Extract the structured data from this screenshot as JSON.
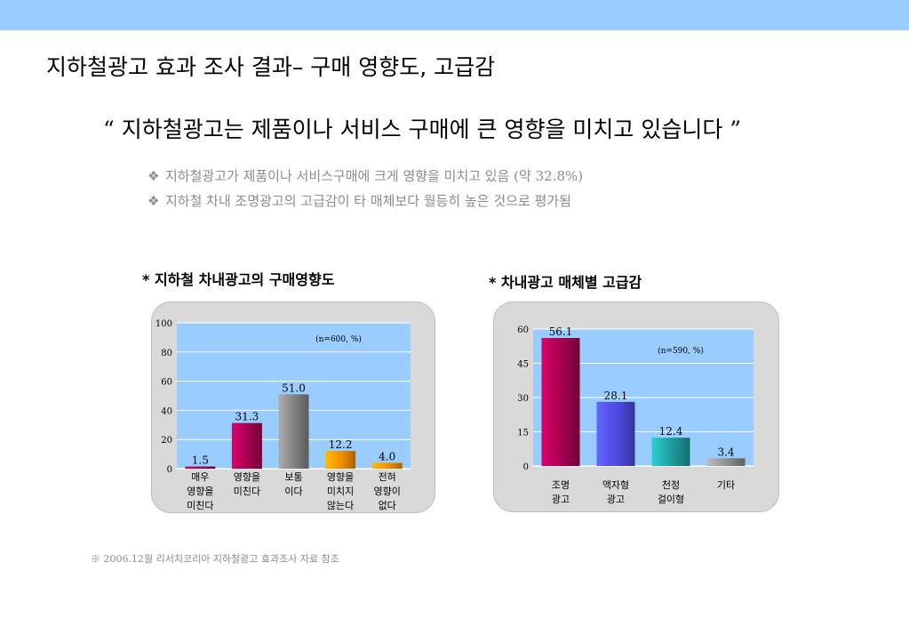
{
  "header": {
    "title": "지하철광고 효과 조사 결과– 구매 영향도, 고급감",
    "quote": "“ 지하철광고는 제품이나 서비스 구매에 큰 영향을 미치고 있습니다 ”",
    "bullet_mark": "❖",
    "bullets": [
      "지하철광고가 제품이나 서비스구매에 크게 영향을 미치고 있음 (약 32.8%)",
      "지하철 차내 조명광고의 고급감이 타 매체보다 월등히 높은 것으로 평가됨"
    ]
  },
  "colors": {
    "topbar": "#99ccff",
    "plot_bg": "#99ccff",
    "panel_bg": "#d9d9d9"
  },
  "chart_data": [
    {
      "type": "bar",
      "title": "* 지하철 차내광고의 구매영향도",
      "note": "(n=600, %)",
      "categories": [
        [
          "매우",
          "영향을",
          "미친다"
        ],
        [
          "영향을",
          "미친다"
        ],
        [
          "보통",
          "이다"
        ],
        [
          "영향을",
          "미치지",
          "않는다"
        ],
        [
          "전혀",
          "영향이",
          "없다"
        ]
      ],
      "values": [
        1.5,
        31.3,
        51.0,
        12.2,
        4.0
      ],
      "value_labels": [
        "1.5",
        "31.3",
        "51.0",
        "12.2",
        "4.0"
      ],
      "ylim": [
        0,
        100
      ],
      "yticks": [
        0,
        20,
        40,
        60,
        80,
        100
      ],
      "bar_colors": [
        "#a3004f",
        "#a3004f",
        "#808080",
        "#f08c00",
        "#f08c00"
      ],
      "grid": true
    },
    {
      "type": "bar",
      "title": "* 차내광고 매체별 고급감",
      "note": "(n=590, %)",
      "categories": [
        [
          "조명",
          "광고"
        ],
        [
          "액자형",
          "광고"
        ],
        [
          "천정",
          "걸이형"
        ],
        [
          "기타"
        ]
      ],
      "values": [
        56.1,
        28.1,
        12.4,
        3.4
      ],
      "value_labels": [
        "56.1",
        "28.1",
        "12.4",
        "3.4"
      ],
      "ylim": [
        0,
        60
      ],
      "yticks": [
        0,
        15,
        30,
        45,
        60
      ],
      "bar_colors": [
        "#a3004f",
        "#4a4ae0",
        "#1e9a9a",
        "#8c8c8c"
      ],
      "grid": true
    }
  ],
  "footer": {
    "source": "※ 2006.12월 리서치코리아 지하철광고 효과조사 자료 참조"
  }
}
